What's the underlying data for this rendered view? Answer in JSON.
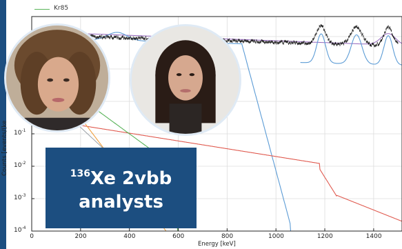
{
  "legend": {
    "label": "Kr85",
    "color": "#59b359"
  },
  "axes": {
    "xlabel": "Energy [keV]",
    "ylabel": "Counts [events/(ke",
    "x_ticks": [
      "0",
      "200",
      "400",
      "600",
      "800",
      "1000",
      "1200",
      "1400"
    ],
    "y_ticks": [
      {
        "base": "10",
        "exp": "-1"
      },
      {
        "base": "10",
        "exp": "-2"
      },
      {
        "base": "10",
        "exp": "-3"
      },
      {
        "base": "10",
        "exp": "-4"
      }
    ]
  },
  "overlay": {
    "title_sup": "136",
    "title_main": "Xe 2vbb",
    "title_line2": "analysts",
    "color": "#1c4e80"
  },
  "photos": [
    {
      "name": "analyst-photo-1"
    },
    {
      "name": "analyst-photo-2"
    }
  ],
  "colors": {
    "data": "#111111",
    "blue": "#5b9bd5",
    "red": "#e05a4f",
    "green": "#59b359",
    "orange": "#f0a040",
    "purple": "#9467bd",
    "pink": "#e377c2",
    "gray": "#9aa0a6"
  }
}
